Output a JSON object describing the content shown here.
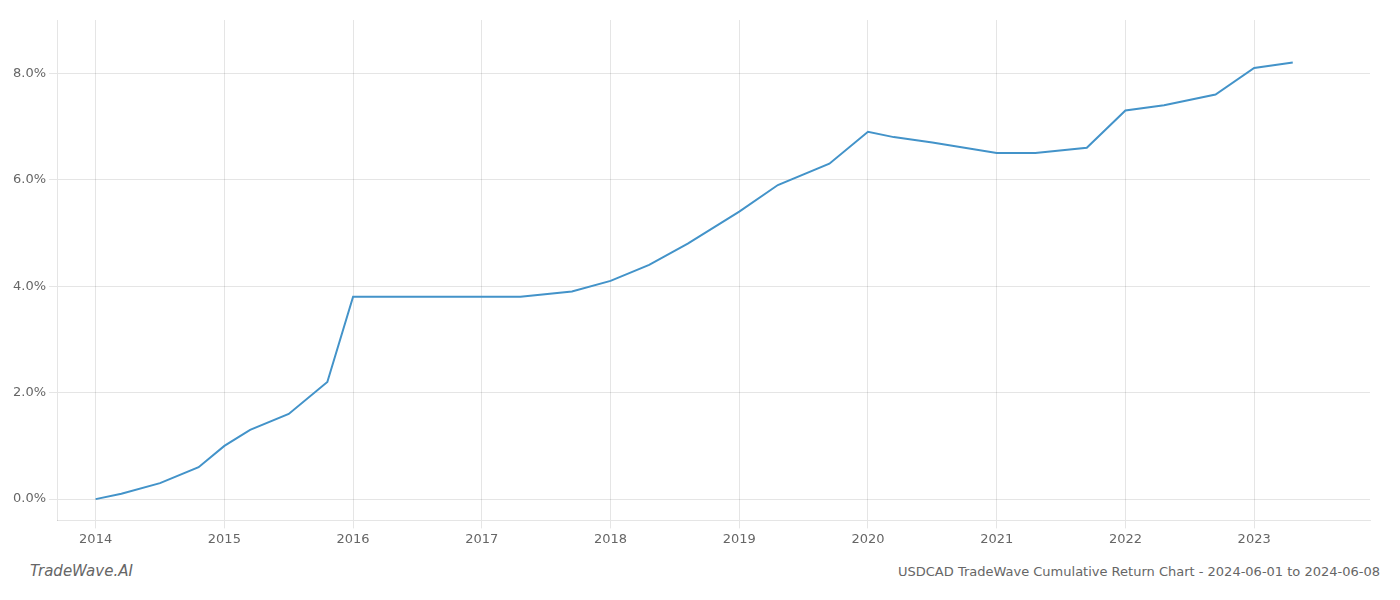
{
  "chart_data": {
    "type": "line",
    "x": [
      2014.0,
      2014.2,
      2014.5,
      2014.8,
      2015.0,
      2015.2,
      2015.5,
      2015.8,
      2016.0,
      2016.3,
      2016.7,
      2017.0,
      2017.3,
      2017.7,
      2018.0,
      2018.3,
      2018.6,
      2019.0,
      2019.3,
      2019.7,
      2020.0,
      2020.2,
      2020.5,
      2021.0,
      2021.3,
      2021.7,
      2022.0,
      2022.3,
      2022.7,
      2023.0,
      2023.3
    ],
    "values": [
      0.0,
      0.001,
      0.003,
      0.006,
      0.01,
      0.013,
      0.016,
      0.022,
      0.038,
      0.038,
      0.038,
      0.038,
      0.038,
      0.039,
      0.041,
      0.044,
      0.048,
      0.054,
      0.059,
      0.063,
      0.069,
      0.068,
      0.067,
      0.065,
      0.065,
      0.066,
      0.073,
      0.074,
      0.076,
      0.081,
      0.082
    ],
    "color": "#4393c9",
    "xlim": [
      2013.7,
      2023.9
    ],
    "xticks": [
      2014,
      2015,
      2016,
      2017,
      2018,
      2019,
      2020,
      2021,
      2022,
      2023
    ],
    "ylim": [
      -0.004,
      0.09
    ],
    "yticks": [
      {
        "value": 0.0,
        "label": "0.0%"
      },
      {
        "value": 0.02,
        "label": "2.0%"
      },
      {
        "value": 0.04,
        "label": "4.0%"
      },
      {
        "value": 0.06,
        "label": "6.0%"
      },
      {
        "value": 0.08,
        "label": "8.0%"
      }
    ],
    "grid": true,
    "annotations": [
      "TradeWave.AI",
      "USDCAD TradeWave Cumulative Return Chart - 2024-06-01 to 2024-06-08"
    ]
  }
}
